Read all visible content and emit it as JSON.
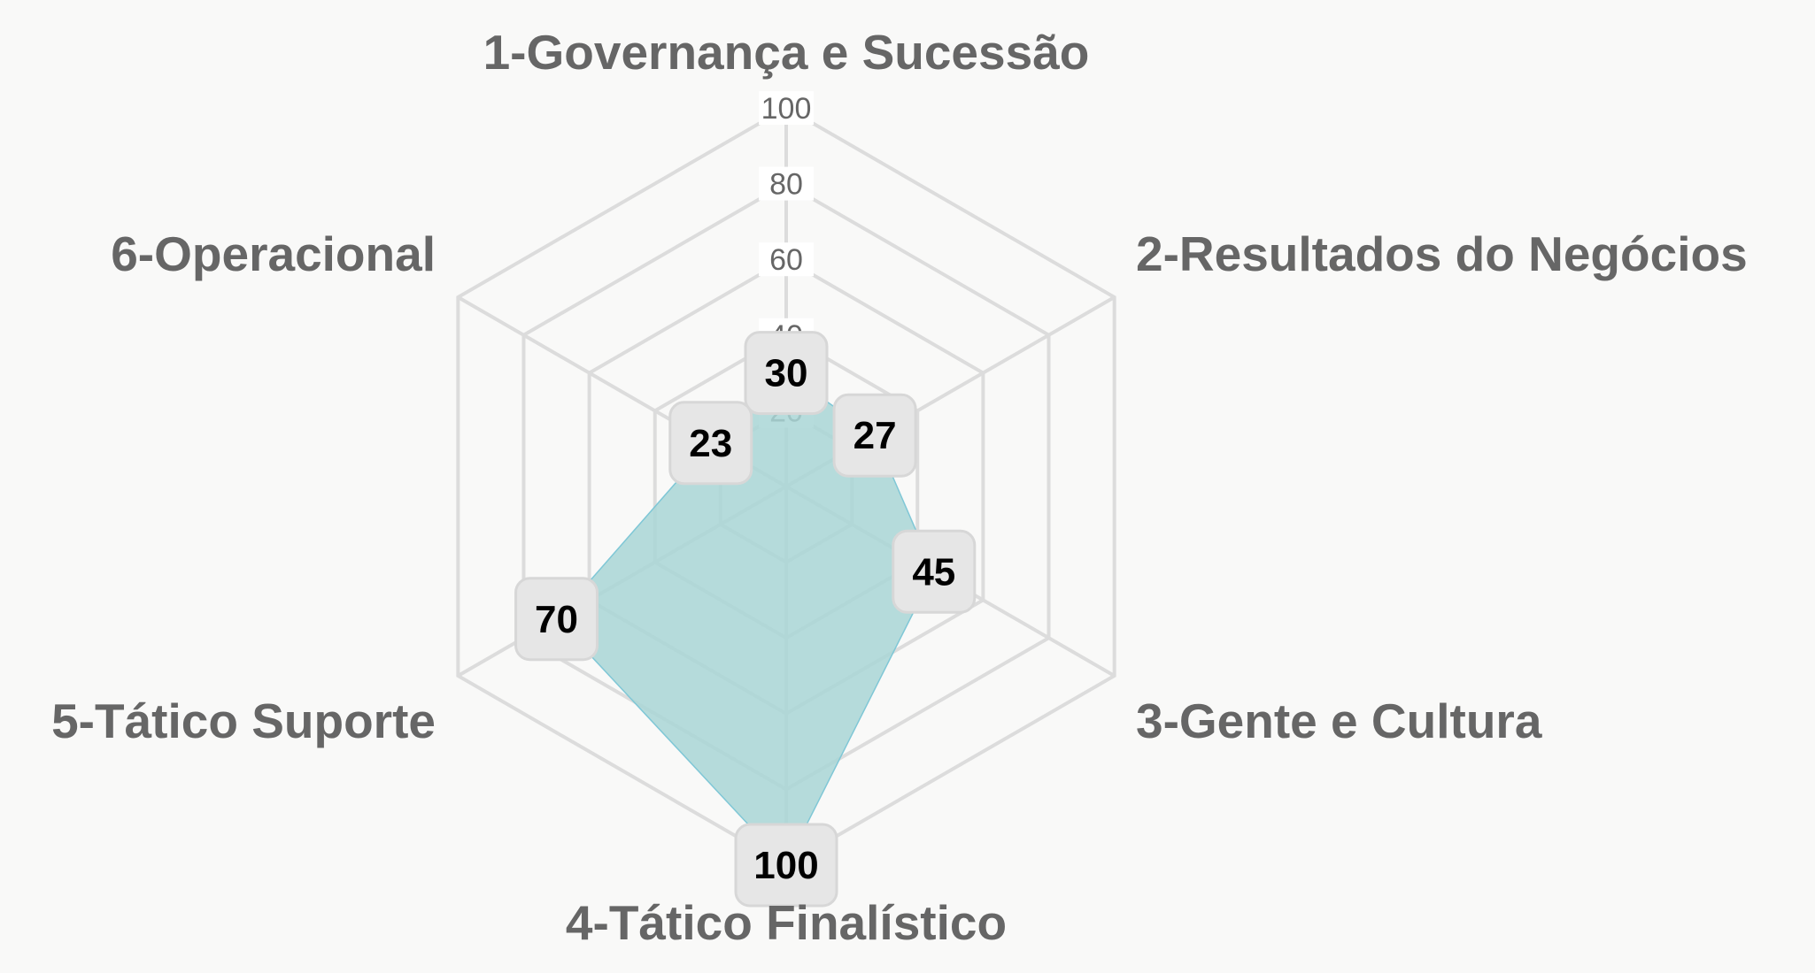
{
  "chart_data": {
    "type": "radar",
    "categories": [
      "1-Governança e Sucessão",
      "2-Resultados do Negócios",
      "3-Gente e Cultura",
      "4-Tático Finalístico",
      "5-Tático Suporte",
      "6-Operacional"
    ],
    "values": [
      30,
      27,
      45,
      100,
      70,
      23
    ],
    "rlim": [
      0,
      100
    ],
    "ticks": [
      "20",
      "40",
      "60",
      "80",
      "100"
    ],
    "grid": true,
    "colors": {
      "fill": "#a9d6d6",
      "stroke": "#7fc7d6",
      "grid": "#dcdcdc",
      "label_box": "#e6e6e6",
      "text": "#666666"
    }
  }
}
